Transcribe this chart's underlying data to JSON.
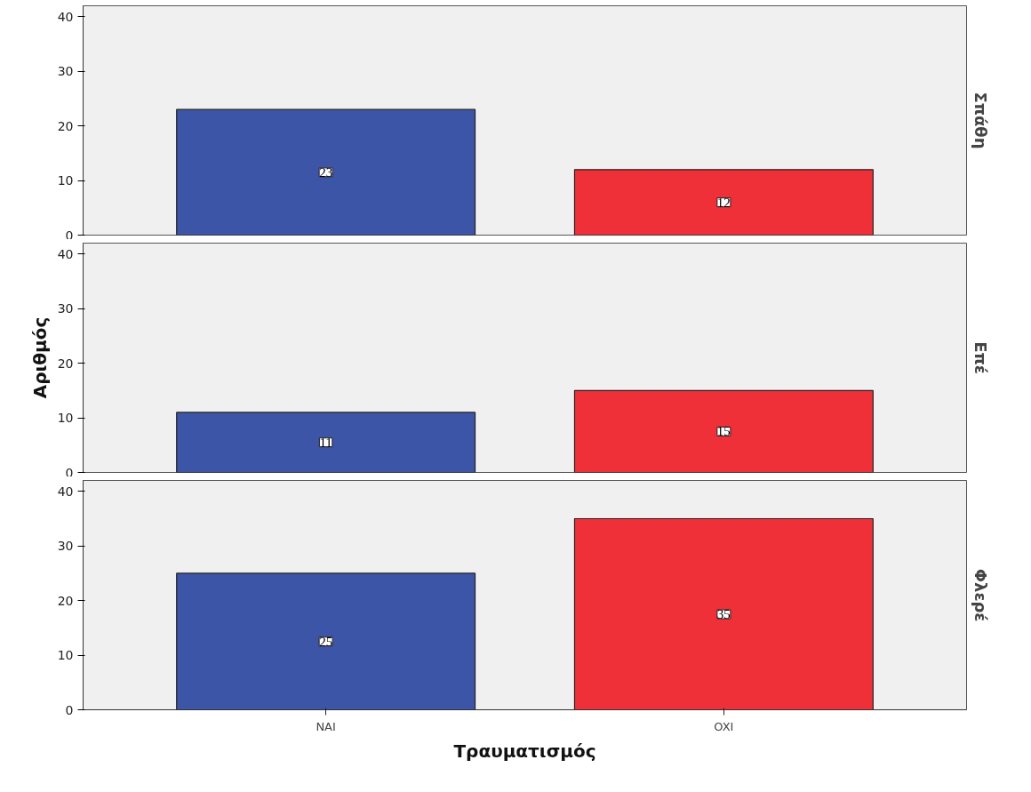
{
  "chart_data": [
    {
      "type": "bar",
      "title": "Σπάθη",
      "categories": [
        null,
        null
      ],
      "values": [
        23,
        12
      ],
      "colors": [
        "#3d55a6",
        "#ef3038"
      ],
      "ylim": [
        0,
        42
      ],
      "yticks": [
        0,
        10,
        20,
        30,
        40
      ],
      "data_labels": true,
      "grid": false,
      "tick_labels": "y"
    },
    {
      "type": "bar",
      "title": "Επέ",
      "ylabel": "Αριθμός",
      "categories": [
        null,
        null
      ],
      "values": [
        11,
        15
      ],
      "colors": [
        "#3d55a6",
        "#ef3038"
      ],
      "ylim": [
        0,
        42
      ],
      "yticks": [
        0,
        10,
        20,
        30,
        40
      ],
      "data_labels": true,
      "grid": false,
      "tick_labels": "y"
    },
    {
      "type": "bar",
      "title": "Φλερέ",
      "xlabel": "Τραυματισμός",
      "categories": [
        "NAI",
        "OXI"
      ],
      "values": [
        25,
        35
      ],
      "colors": [
        "#3d55a6",
        "#ef3038"
      ],
      "ylim": [
        0,
        42
      ],
      "yticks": [
        0,
        10,
        20,
        30,
        40
      ],
      "data_labels": true,
      "grid": false
    }
  ]
}
